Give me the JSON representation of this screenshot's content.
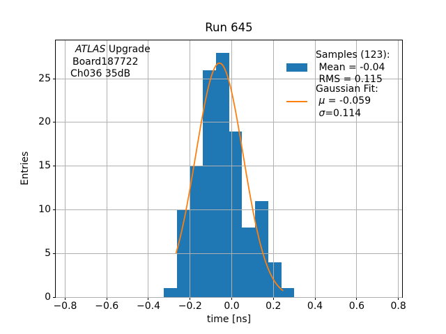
{
  "title": "Run 645",
  "annotation": {
    "line1_italic": "ATLAS",
    "line1_rest": " Upgrade",
    "line2": "Board187722",
    "line3": "Ch036 35dB"
  },
  "legend": {
    "samples": {
      "color": "#1f77b4",
      "line1": "Samples (123):",
      "line2": " Mean = -0.04",
      "line3": " RMS = 0.115"
    },
    "fit": {
      "color": "#ff7f0e",
      "line1": "Gaussian Fit:",
      "mu_sym": " μ",
      "mu_val": " = -0.059",
      "sigma_sym": " σ",
      "sigma_val": "=0.114"
    }
  },
  "chart_data": {
    "type": "histogram",
    "title": "Run 645",
    "xlabel": "time [ns]",
    "ylabel": "Entries",
    "xlim": [
      -0.845,
      0.818
    ],
    "ylim": [
      0,
      29.4
    ],
    "xticks": [
      -0.8,
      -0.6,
      -0.4,
      -0.2,
      0.0,
      0.2,
      0.4,
      0.6,
      0.8
    ],
    "xtick_labels": [
      "−0.8",
      "−0.6",
      "−0.4",
      "−0.2",
      "0.0",
      "0.2",
      "0.4",
      "0.6",
      "0.8"
    ],
    "yticks": [
      0,
      5,
      10,
      15,
      20,
      25
    ],
    "ytick_labels": [
      "0",
      "5",
      "10",
      "15",
      "20",
      "25"
    ],
    "grid": true,
    "grid_color": "#b0b0b0",
    "series": [
      {
        "name": "Samples",
        "type": "histogram",
        "color": "#1f77b4",
        "n_samples": 123,
        "mean": -0.04,
        "rms": 0.115,
        "bin_edges": [
          -0.325,
          -0.2625,
          -0.2,
          -0.1375,
          -0.075,
          -0.0125,
          0.05,
          0.1125,
          0.175,
          0.2375,
          0.3
        ],
        "counts": [
          1,
          10,
          15,
          26,
          28,
          19,
          8,
          11,
          4,
          1
        ]
      },
      {
        "name": "Gaussian Fit",
        "type": "line",
        "color": "#ff7f0e",
        "mu": -0.059,
        "sigma": 0.114,
        "peak_height": 26.8,
        "x_start": -0.267,
        "x_end": 0.245
      }
    ]
  }
}
